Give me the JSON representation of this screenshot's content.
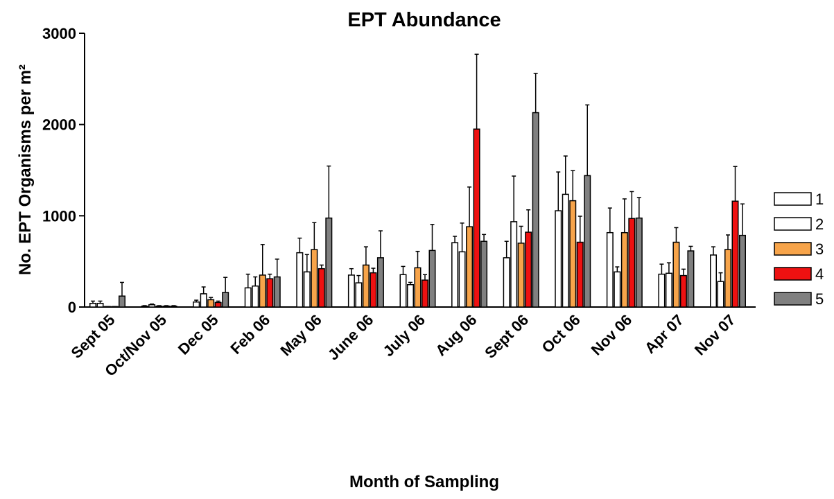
{
  "chart_data": {
    "type": "bar",
    "title": "EPT Abundance",
    "x_label": "Month of Sampling",
    "y_label": "No. EPT Organisms per m²",
    "categories": [
      "Sept 05",
      "Oct/Nov 05",
      "Dec 05",
      "Feb 06",
      "May 06",
      "June 06",
      "July 06",
      "Aug 06",
      "Sept 06",
      "Oct 06",
      "Nov 06",
      "Apr 07",
      "Nov 07"
    ],
    "ylim": [
      0,
      3000
    ],
    "yticks": [
      0,
      1000,
      2000,
      3000
    ],
    "legend": "right",
    "series": [
      {
        "name": "1",
        "color": "#ffffff",
        "values": [
          40,
          10,
          55,
          210,
          595,
          350,
          355,
          705,
          540,
          1055,
          815,
          360,
          570
        ],
        "errors": [
          25,
          5,
          20,
          150,
          160,
          70,
          90,
          70,
          180,
          425,
          270,
          110,
          90
        ]
      },
      {
        "name": "2",
        "color": "#ffffff",
        "values": [
          40,
          25,
          145,
          230,
          385,
          265,
          245,
          605,
          935,
          1235,
          385,
          370,
          280
        ],
        "errors": [
          25,
          8,
          75,
          100,
          190,
          80,
          25,
          315,
          500,
          420,
          55,
          115,
          95
        ]
      },
      {
        "name": "3",
        "color": "#f7a44a",
        "values": [
          5,
          10,
          80,
          350,
          630,
          460,
          430,
          880,
          700,
          1165,
          815,
          710,
          630
        ],
        "errors": [
          0,
          5,
          25,
          335,
          295,
          200,
          180,
          435,
          185,
          330,
          370,
          160,
          160
        ]
      },
      {
        "name": "4",
        "color": "#ee1111",
        "values": [
          5,
          10,
          50,
          310,
          420,
          375,
          295,
          1950,
          820,
          710,
          970,
          345,
          1160
        ],
        "errors": [
          0,
          5,
          15,
          50,
          40,
          50,
          60,
          820,
          245,
          285,
          295,
          70,
          380
        ]
      },
      {
        "name": "5",
        "color": "#808080",
        "values": [
          120,
          10,
          160,
          330,
          975,
          540,
          620,
          720,
          2130,
          1440,
          975,
          615,
          785
        ],
        "errors": [
          150,
          5,
          165,
          195,
          570,
          295,
          285,
          75,
          430,
          775,
          225,
          50,
          345
        ]
      }
    ]
  }
}
